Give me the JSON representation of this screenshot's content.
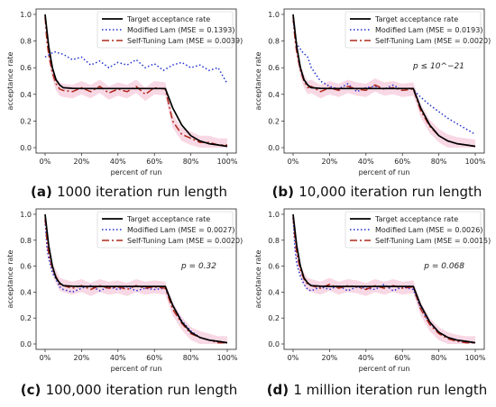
{
  "colors": {
    "target": "#000000",
    "modified": "#1f2fd0",
    "self_tuning": "#b0281a",
    "band": "#f3b8d0"
  },
  "chart_data": [
    {
      "type": "line",
      "caption_letter": "(a)",
      "caption_text": "1000 iteration run length",
      "xlabel": "percent of run",
      "ylabel": "acceptance rate",
      "annotation": "",
      "xlim": [
        0,
        100
      ],
      "ylim": [
        0,
        1
      ],
      "x_ticks": [
        "0%",
        "20%",
        "40%",
        "60%",
        "80%",
        "100%"
      ],
      "y_ticks": [
        "0.0",
        "0.2",
        "0.4",
        "0.6",
        "0.8",
        "1.0"
      ],
      "legend_position": "top-right",
      "series": [
        {
          "name": "Target acceptance rate",
          "style": "solid",
          "x": [
            0,
            1,
            2,
            4,
            6,
            8,
            10,
            15,
            20,
            30,
            40,
            50,
            60,
            66,
            70,
            75,
            80,
            85,
            90,
            95,
            100
          ],
          "y": [
            1.0,
            0.88,
            0.76,
            0.6,
            0.51,
            0.47,
            0.45,
            0.445,
            0.444,
            0.444,
            0.444,
            0.444,
            0.444,
            0.444,
            0.3,
            0.17,
            0.09,
            0.05,
            0.03,
            0.02,
            0.01
          ]
        },
        {
          "name": "Modified Lam (MSE = 0.1393)",
          "style": "dotted",
          "x": [
            0,
            5,
            10,
            15,
            20,
            25,
            30,
            35,
            40,
            45,
            50,
            55,
            60,
            65,
            70,
            75,
            80,
            85,
            90,
            95,
            100
          ],
          "y": [
            0.68,
            0.72,
            0.7,
            0.66,
            0.68,
            0.62,
            0.65,
            0.6,
            0.64,
            0.62,
            0.66,
            0.6,
            0.63,
            0.58,
            0.62,
            0.64,
            0.6,
            0.62,
            0.58,
            0.6,
            0.48
          ]
        },
        {
          "name": "Self-Tuning Lam (MSE = 0.0039)",
          "style": "dashdot",
          "x": [
            0,
            1,
            2,
            4,
            6,
            8,
            10,
            15,
            20,
            25,
            30,
            35,
            40,
            45,
            50,
            55,
            60,
            66,
            70,
            75,
            80,
            85,
            90,
            95,
            100
          ],
          "y": [
            0.98,
            0.8,
            0.7,
            0.56,
            0.48,
            0.44,
            0.43,
            0.42,
            0.45,
            0.42,
            0.46,
            0.41,
            0.44,
            0.42,
            0.46,
            0.4,
            0.45,
            0.44,
            0.2,
            0.1,
            0.07,
            0.04,
            0.04,
            0.02,
            0.02
          ]
        }
      ]
    },
    {
      "type": "line",
      "caption_letter": "(b)",
      "caption_text": "10,000 iteration run length",
      "xlabel": "percent of run",
      "ylabel": "acceptance rate",
      "annotation": "p ≤ 10^−21",
      "xlim": [
        0,
        100
      ],
      "ylim": [
        0,
        1
      ],
      "x_ticks": [
        "0%",
        "20%",
        "40%",
        "60%",
        "80%",
        "100%"
      ],
      "y_ticks": [
        "0.0",
        "0.2",
        "0.4",
        "0.6",
        "0.8",
        "1.0"
      ],
      "legend_position": "top-right",
      "series": [
        {
          "name": "Target acceptance rate",
          "style": "solid",
          "x": [
            0,
            1,
            2,
            4,
            6,
            8,
            10,
            15,
            20,
            30,
            40,
            50,
            60,
            66,
            70,
            75,
            80,
            85,
            90,
            95,
            100
          ],
          "y": [
            1.0,
            0.88,
            0.76,
            0.6,
            0.51,
            0.47,
            0.45,
            0.445,
            0.444,
            0.444,
            0.444,
            0.444,
            0.444,
            0.444,
            0.3,
            0.17,
            0.09,
            0.05,
            0.03,
            0.02,
            0.01
          ]
        },
        {
          "name": "Modified Lam (MSE = 0.0193)",
          "style": "dotted",
          "x": [
            0,
            2,
            5,
            8,
            10,
            15,
            20,
            25,
            30,
            35,
            40,
            45,
            50,
            55,
            60,
            65,
            70,
            75,
            80,
            85,
            90,
            95,
            100
          ],
          "y": [
            0.95,
            0.78,
            0.72,
            0.68,
            0.6,
            0.5,
            0.46,
            0.44,
            0.48,
            0.42,
            0.45,
            0.46,
            0.44,
            0.47,
            0.43,
            0.45,
            0.38,
            0.32,
            0.27,
            0.22,
            0.18,
            0.14,
            0.1
          ]
        },
        {
          "name": "Self-Tuning Lam (MSE = 0.0020)",
          "style": "dashdot",
          "x": [
            0,
            1,
            2,
            4,
            6,
            8,
            10,
            15,
            20,
            25,
            30,
            35,
            40,
            45,
            50,
            55,
            60,
            66,
            70,
            75,
            80,
            85,
            90,
            95,
            100
          ],
          "y": [
            0.98,
            0.82,
            0.72,
            0.58,
            0.5,
            0.45,
            0.46,
            0.42,
            0.45,
            0.43,
            0.46,
            0.44,
            0.43,
            0.47,
            0.44,
            0.45,
            0.43,
            0.44,
            0.28,
            0.16,
            0.09,
            0.05,
            0.03,
            0.02,
            0.01
          ]
        }
      ]
    },
    {
      "type": "line",
      "caption_letter": "(c)",
      "caption_text": "100,000 iteration run length",
      "xlabel": "percent of run",
      "ylabel": "acceptance rate",
      "annotation": "p = 0.32",
      "xlim": [
        0,
        100
      ],
      "ylim": [
        0,
        1
      ],
      "x_ticks": [
        "0%",
        "20%",
        "40%",
        "60%",
        "80%",
        "100%"
      ],
      "y_ticks": [
        "0.0",
        "0.2",
        "0.4",
        "0.6",
        "0.8",
        "1.0"
      ],
      "legend_position": "top-right",
      "series": [
        {
          "name": "Target acceptance rate",
          "style": "solid",
          "x": [
            0,
            1,
            2,
            4,
            6,
            8,
            10,
            15,
            20,
            30,
            40,
            50,
            60,
            66,
            70,
            75,
            80,
            85,
            90,
            95,
            100
          ],
          "y": [
            1.0,
            0.88,
            0.76,
            0.6,
            0.51,
            0.47,
            0.45,
            0.445,
            0.444,
            0.444,
            0.444,
            0.444,
            0.444,
            0.444,
            0.3,
            0.17,
            0.09,
            0.05,
            0.03,
            0.02,
            0.01
          ]
        },
        {
          "name": "Modified Lam (MSE = 0.0027)",
          "style": "dotted",
          "x": [
            0,
            1,
            2,
            4,
            6,
            8,
            10,
            15,
            20,
            25,
            30,
            35,
            40,
            45,
            50,
            55,
            60,
            66,
            70,
            75,
            80,
            85,
            90,
            95,
            100
          ],
          "y": [
            0.95,
            0.75,
            0.66,
            0.55,
            0.5,
            0.44,
            0.42,
            0.4,
            0.43,
            0.45,
            0.41,
            0.44,
            0.42,
            0.44,
            0.41,
            0.43,
            0.42,
            0.43,
            0.3,
            0.18,
            0.1,
            0.05,
            0.03,
            0.02,
            0.01
          ]
        },
        {
          "name": "Self-Tuning Lam (MSE = 0.0020)",
          "style": "dashdot",
          "x": [
            0,
            1,
            2,
            4,
            6,
            8,
            10,
            15,
            20,
            25,
            30,
            35,
            40,
            45,
            50,
            55,
            60,
            66,
            70,
            75,
            80,
            85,
            90,
            95,
            100
          ],
          "y": [
            0.97,
            0.8,
            0.7,
            0.58,
            0.52,
            0.46,
            0.45,
            0.43,
            0.45,
            0.42,
            0.45,
            0.43,
            0.44,
            0.42,
            0.45,
            0.43,
            0.44,
            0.43,
            0.27,
            0.16,
            0.08,
            0.05,
            0.03,
            0.01,
            0.01
          ]
        }
      ]
    },
    {
      "type": "line",
      "caption_letter": "(d)",
      "caption_text": "1 million iteration run length",
      "xlabel": "percent of run",
      "ylabel": "acceptance rate",
      "annotation": "p = 0.068",
      "xlim": [
        0,
        100
      ],
      "ylim": [
        0,
        1
      ],
      "x_ticks": [
        "0%",
        "20%",
        "40%",
        "60%",
        "80%",
        "100%"
      ],
      "y_ticks": [
        "0.0",
        "0.2",
        "0.4",
        "0.6",
        "0.8",
        "1.0"
      ],
      "legend_position": "top-right",
      "series": [
        {
          "name": "Target acceptance rate",
          "style": "solid",
          "x": [
            0,
            1,
            2,
            4,
            6,
            8,
            10,
            15,
            20,
            30,
            40,
            50,
            60,
            66,
            70,
            75,
            80,
            85,
            90,
            95,
            100
          ],
          "y": [
            1.0,
            0.88,
            0.76,
            0.6,
            0.51,
            0.47,
            0.45,
            0.445,
            0.444,
            0.444,
            0.444,
            0.444,
            0.444,
            0.444,
            0.3,
            0.17,
            0.09,
            0.05,
            0.03,
            0.02,
            0.01
          ]
        },
        {
          "name": "Modified Lam (MSE = 0.0026)",
          "style": "dotted",
          "x": [
            0,
            1,
            2,
            4,
            6,
            8,
            10,
            15,
            20,
            25,
            30,
            35,
            40,
            45,
            50,
            55,
            60,
            66,
            70,
            75,
            80,
            85,
            90,
            95,
            100
          ],
          "y": [
            0.97,
            0.74,
            0.62,
            0.52,
            0.46,
            0.42,
            0.41,
            0.44,
            0.42,
            0.45,
            0.41,
            0.44,
            0.43,
            0.42,
            0.46,
            0.41,
            0.44,
            0.42,
            0.28,
            0.16,
            0.09,
            0.05,
            0.03,
            0.02,
            0.01
          ]
        },
        {
          "name": "Self-Tuning Lam (MSE = 0.0015)",
          "style": "dashdot",
          "x": [
            0,
            1,
            2,
            4,
            6,
            8,
            10,
            15,
            20,
            25,
            30,
            35,
            40,
            45,
            50,
            55,
            60,
            66,
            70,
            75,
            80,
            85,
            90,
            95,
            100
          ],
          "y": [
            0.98,
            0.82,
            0.7,
            0.57,
            0.5,
            0.46,
            0.45,
            0.43,
            0.46,
            0.43,
            0.45,
            0.44,
            0.42,
            0.45,
            0.43,
            0.45,
            0.43,
            0.44,
            0.27,
            0.15,
            0.08,
            0.04,
            0.02,
            0.01,
            0.01
          ]
        }
      ]
    }
  ]
}
